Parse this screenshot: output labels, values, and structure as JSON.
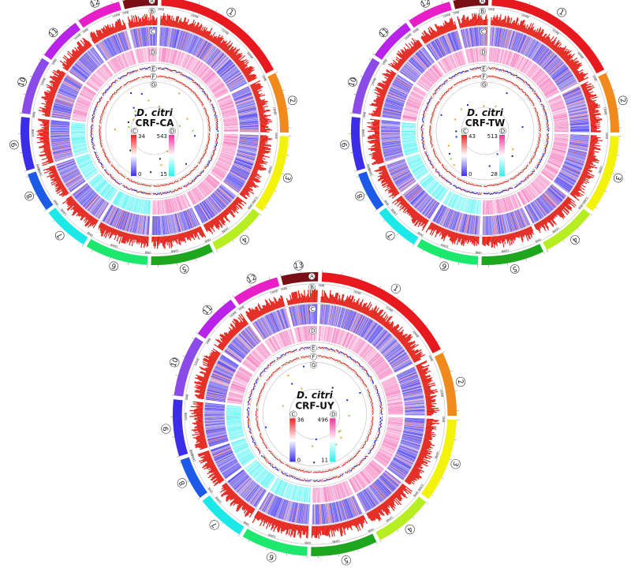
{
  "chromosome_labels": [
    "1",
    "2",
    "3",
    "4",
    "5",
    "6",
    "7",
    "8",
    "9",
    "10",
    "11",
    "12",
    "13"
  ],
  "chromosome_colors": [
    "#e8191e",
    "#f08a1c",
    "#f2f20a",
    "#b6ee22",
    "#1ea61e",
    "#1ce86e",
    "#1ce8e8",
    "#1e5ae8",
    "#3c2de8",
    "#8a4be8",
    "#b922e8",
    "#e81ec9",
    "#7a0e16"
  ],
  "chromosome_sizes_mb": [
    59,
    26,
    34,
    24,
    27,
    27,
    20,
    17,
    23,
    25,
    19,
    19,
    15
  ],
  "tick_labels": [
    "0MB",
    "8MB",
    "16MB",
    "24MB",
    "32MB",
    "40MB",
    "48MB",
    "56MB"
  ],
  "track_letters": [
    "A",
    "B",
    "C",
    "D",
    "E",
    "F",
    "G"
  ],
  "colors": {
    "density_red": "#e32119",
    "heat_low": "#4a3cf0",
    "heat_high": "#ee2222",
    "gene_pink": "#f0349a",
    "gene_cyan": "#2ef0f0",
    "ring_grey": "#bdbdbd",
    "dot_blue": "#1a2bd6",
    "dot_red": "#d62a1a",
    "dot_green": "#7ad64a",
    "dot_orange": "#f0a020"
  },
  "panels": [
    {
      "species": "D. citri",
      "strain": "CRF-CA",
      "legend_c": {
        "letter": "C",
        "max": "34",
        "min": "0"
      },
      "legend_d": {
        "letter": "D",
        "max": "543",
        "min": "15"
      }
    },
    {
      "species": "D. citri",
      "strain": "CRF-TW",
      "legend_c": {
        "letter": "C",
        "max": "43",
        "min": "0"
      },
      "legend_d": {
        "letter": "D",
        "max": "513",
        "min": "28"
      }
    },
    {
      "species": "D. citri",
      "strain": "CRF-UY",
      "legend_c": {
        "letter": "C",
        "max": "36",
        "min": "0"
      },
      "legend_d": {
        "letter": "D",
        "max": "496",
        "min": "11"
      }
    }
  ]
}
